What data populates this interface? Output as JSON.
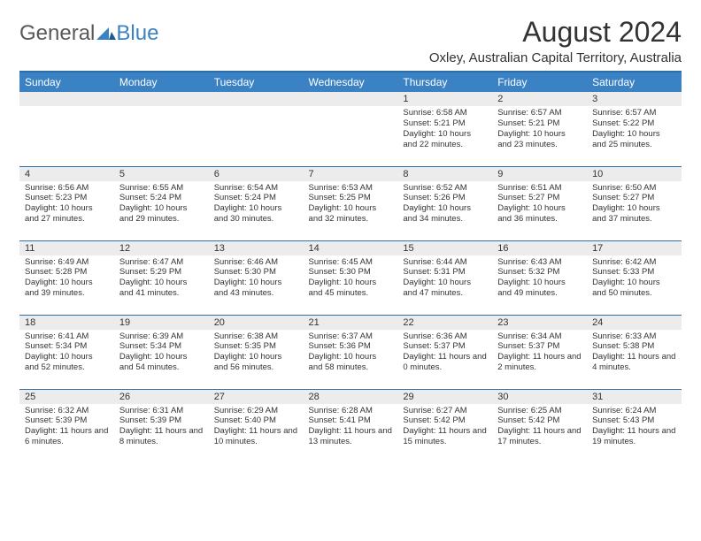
{
  "brand": {
    "word1": "General",
    "word2": "Blue"
  },
  "title": "August 2024",
  "subtitle": "Oxley, Australian Capital Territory, Australia",
  "day_headers": [
    "Sunday",
    "Monday",
    "Tuesday",
    "Wednesday",
    "Thursday",
    "Friday",
    "Saturday"
  ],
  "colors": {
    "header_bg": "#3b82c4",
    "header_text": "#ffffff",
    "rule": "#2f6fa8",
    "daynum_bg": "#ececec",
    "text": "#333333",
    "logo_gray": "#595959",
    "logo_blue": "#3b82c4"
  },
  "weeks": [
    [
      null,
      null,
      null,
      null,
      {
        "n": "1",
        "sr": "6:58 AM",
        "ss": "5:21 PM",
        "dl": "10 hours and 22 minutes."
      },
      {
        "n": "2",
        "sr": "6:57 AM",
        "ss": "5:21 PM",
        "dl": "10 hours and 23 minutes."
      },
      {
        "n": "3",
        "sr": "6:57 AM",
        "ss": "5:22 PM",
        "dl": "10 hours and 25 minutes."
      }
    ],
    [
      {
        "n": "4",
        "sr": "6:56 AM",
        "ss": "5:23 PM",
        "dl": "10 hours and 27 minutes."
      },
      {
        "n": "5",
        "sr": "6:55 AM",
        "ss": "5:24 PM",
        "dl": "10 hours and 29 minutes."
      },
      {
        "n": "6",
        "sr": "6:54 AM",
        "ss": "5:24 PM",
        "dl": "10 hours and 30 minutes."
      },
      {
        "n": "7",
        "sr": "6:53 AM",
        "ss": "5:25 PM",
        "dl": "10 hours and 32 minutes."
      },
      {
        "n": "8",
        "sr": "6:52 AM",
        "ss": "5:26 PM",
        "dl": "10 hours and 34 minutes."
      },
      {
        "n": "9",
        "sr": "6:51 AM",
        "ss": "5:27 PM",
        "dl": "10 hours and 36 minutes."
      },
      {
        "n": "10",
        "sr": "6:50 AM",
        "ss": "5:27 PM",
        "dl": "10 hours and 37 minutes."
      }
    ],
    [
      {
        "n": "11",
        "sr": "6:49 AM",
        "ss": "5:28 PM",
        "dl": "10 hours and 39 minutes."
      },
      {
        "n": "12",
        "sr": "6:47 AM",
        "ss": "5:29 PM",
        "dl": "10 hours and 41 minutes."
      },
      {
        "n": "13",
        "sr": "6:46 AM",
        "ss": "5:30 PM",
        "dl": "10 hours and 43 minutes."
      },
      {
        "n": "14",
        "sr": "6:45 AM",
        "ss": "5:30 PM",
        "dl": "10 hours and 45 minutes."
      },
      {
        "n": "15",
        "sr": "6:44 AM",
        "ss": "5:31 PM",
        "dl": "10 hours and 47 minutes."
      },
      {
        "n": "16",
        "sr": "6:43 AM",
        "ss": "5:32 PM",
        "dl": "10 hours and 49 minutes."
      },
      {
        "n": "17",
        "sr": "6:42 AM",
        "ss": "5:33 PM",
        "dl": "10 hours and 50 minutes."
      }
    ],
    [
      {
        "n": "18",
        "sr": "6:41 AM",
        "ss": "5:34 PM",
        "dl": "10 hours and 52 minutes."
      },
      {
        "n": "19",
        "sr": "6:39 AM",
        "ss": "5:34 PM",
        "dl": "10 hours and 54 minutes."
      },
      {
        "n": "20",
        "sr": "6:38 AM",
        "ss": "5:35 PM",
        "dl": "10 hours and 56 minutes."
      },
      {
        "n": "21",
        "sr": "6:37 AM",
        "ss": "5:36 PM",
        "dl": "10 hours and 58 minutes."
      },
      {
        "n": "22",
        "sr": "6:36 AM",
        "ss": "5:37 PM",
        "dl": "11 hours and 0 minutes."
      },
      {
        "n": "23",
        "sr": "6:34 AM",
        "ss": "5:37 PM",
        "dl": "11 hours and 2 minutes."
      },
      {
        "n": "24",
        "sr": "6:33 AM",
        "ss": "5:38 PM",
        "dl": "11 hours and 4 minutes."
      }
    ],
    [
      {
        "n": "25",
        "sr": "6:32 AM",
        "ss": "5:39 PM",
        "dl": "11 hours and 6 minutes."
      },
      {
        "n": "26",
        "sr": "6:31 AM",
        "ss": "5:39 PM",
        "dl": "11 hours and 8 minutes."
      },
      {
        "n": "27",
        "sr": "6:29 AM",
        "ss": "5:40 PM",
        "dl": "11 hours and 10 minutes."
      },
      {
        "n": "28",
        "sr": "6:28 AM",
        "ss": "5:41 PM",
        "dl": "11 hours and 13 minutes."
      },
      {
        "n": "29",
        "sr": "6:27 AM",
        "ss": "5:42 PM",
        "dl": "11 hours and 15 minutes."
      },
      {
        "n": "30",
        "sr": "6:25 AM",
        "ss": "5:42 PM",
        "dl": "11 hours and 17 minutes."
      },
      {
        "n": "31",
        "sr": "6:24 AM",
        "ss": "5:43 PM",
        "dl": "11 hours and 19 minutes."
      }
    ]
  ]
}
